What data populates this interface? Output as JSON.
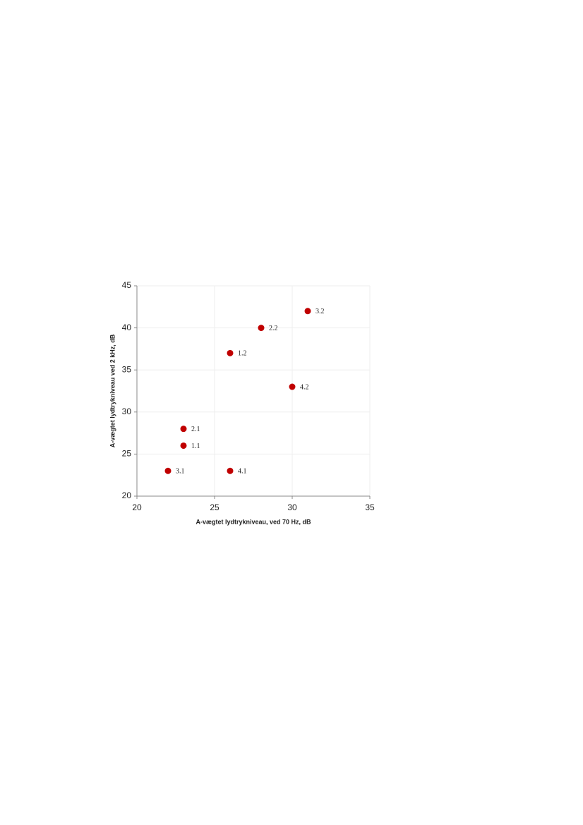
{
  "chart_data": {
    "type": "scatter",
    "x_label": "A-vægtet lydtrykniveau, ved 70 Hz, dB",
    "y_label": "A-vægtet lydtrykniveau  ved 2 kHz, dB",
    "x": [
      22,
      23,
      23,
      26,
      26,
      28,
      30,
      31
    ],
    "values": [
      23,
      26,
      28,
      37,
      23,
      40,
      33,
      42
    ],
    "labels": [
      "3.1",
      "1.1",
      "2.1",
      "1.2",
      "4.1",
      "2.2",
      "4.2",
      "3.2"
    ],
    "color": "#c00000",
    "xlim": [
      20,
      35
    ],
    "xticks": [
      20,
      25,
      30,
      35
    ],
    "ylim": [
      20,
      45
    ],
    "yticks": [
      20,
      25,
      30,
      35,
      40,
      45
    ],
    "grid": true
  }
}
